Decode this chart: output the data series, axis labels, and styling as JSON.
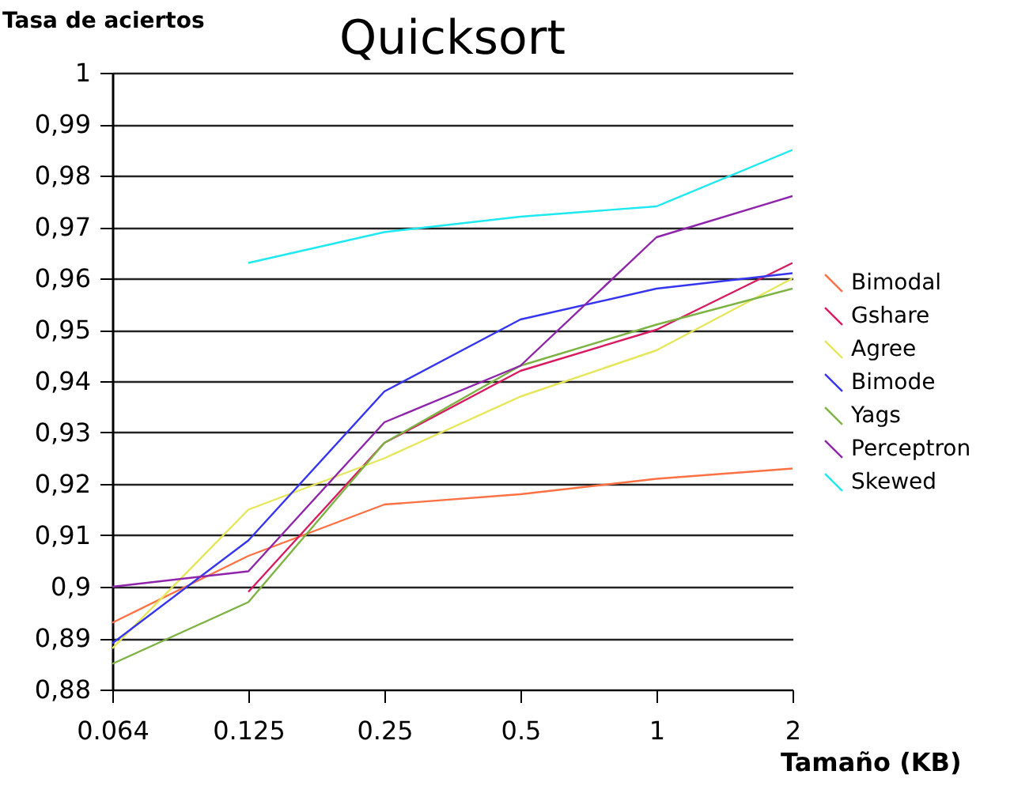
{
  "chart_data": {
    "type": "line",
    "title": "Quicksort",
    "xlabel": "Tamaño (KB)",
    "ylabel": "Tasa de aciertos",
    "categories": [
      "0.064",
      "0.125",
      "0.25",
      "0.5",
      "1",
      "2"
    ],
    "ylim": [
      0.88,
      1
    ],
    "yticks": [
      {
        "value": 0.88,
        "label": "0,88"
      },
      {
        "value": 0.89,
        "label": "0,89"
      },
      {
        "value": 0.9,
        "label": "0,9"
      },
      {
        "value": 0.91,
        "label": "0,91"
      },
      {
        "value": 0.92,
        "label": "0,92"
      },
      {
        "value": 0.93,
        "label": "0,93"
      },
      {
        "value": 0.94,
        "label": "0,94"
      },
      {
        "value": 0.95,
        "label": "0,95"
      },
      {
        "value": 0.96,
        "label": "0,96"
      },
      {
        "value": 0.97,
        "label": "0,97"
      },
      {
        "value": 0.98,
        "label": "0,98"
      },
      {
        "value": 0.99,
        "label": "0,99"
      },
      {
        "value": 1,
        "label": "1"
      }
    ],
    "grid": "y",
    "legend": "right",
    "marker": "none",
    "series": [
      {
        "name": "Bimodal",
        "color": "#ff7043",
        "values": [
          0.893,
          0.906,
          0.916,
          0.918,
          0.921,
          0.923
        ]
      },
      {
        "name": "Gshare",
        "color": "#d81b60",
        "values": [
          null,
          0.899,
          0.928,
          0.942,
          0.95,
          0.963
        ]
      },
      {
        "name": "Agree",
        "color": "#e6e65a",
        "values": [
          0.888,
          0.915,
          0.925,
          0.937,
          0.946,
          0.96
        ]
      },
      {
        "name": "Bimode",
        "color": "#3535f0",
        "values": [
          0.889,
          0.909,
          0.938,
          0.952,
          0.958,
          0.961
        ]
      },
      {
        "name": "Yags",
        "color": "#7cb342",
        "values": [
          0.885,
          0.897,
          0.928,
          0.943,
          0.951,
          0.958
        ]
      },
      {
        "name": "Perceptron",
        "color": "#8e24aa",
        "values": [
          0.9,
          0.903,
          0.932,
          0.943,
          0.968,
          0.976
        ]
      },
      {
        "name": "Skewed",
        "color": "#1ee8f0",
        "values": [
          null,
          0.963,
          0.969,
          0.972,
          0.974,
          0.985
        ]
      }
    ]
  }
}
